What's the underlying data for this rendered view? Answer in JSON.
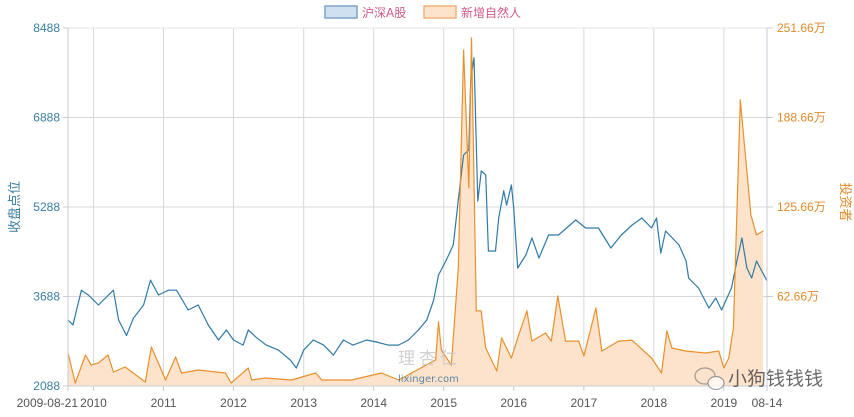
{
  "chart_data": {
    "type": "line",
    "title": "",
    "x_type": "date",
    "x_tick_labels": [
      "2009-08-21",
      "2010",
      "2011",
      "2012",
      "2013",
      "2014",
      "2015",
      "2016",
      "2017",
      "2018",
      "2019",
      "08-14"
    ],
    "xlim": [
      "2009-08-21",
      "2019-08-14"
    ],
    "y_left": {
      "label": "收盘点位",
      "ticks": [
        "2088",
        "3688",
        "5288",
        "6888",
        "8488"
      ],
      "range": [
        2088,
        8488
      ]
    },
    "y_right": {
      "label": "投资者",
      "ticks": [
        "62.66万",
        "125.66万",
        "188.66万",
        "251.66万"
      ],
      "range": [
        -0.34,
        251.66
      ],
      "unit": "万"
    },
    "grid": true,
    "legend_position": "top-center",
    "series": [
      {
        "name": "沪深A股",
        "axis": "left",
        "style": "line",
        "color": "#2f7aa6",
        "legend_fill": "#cfe0f1",
        "legend_border": "#7fa3c7",
        "points": [
          [
            "2009-08-21",
            3268
          ],
          [
            "2009-09-16",
            3180
          ],
          [
            "2009-10-30",
            3800
          ],
          [
            "2009-12-05",
            3715
          ],
          [
            "2010-01-01",
            3625
          ],
          [
            "2010-01-27",
            3536
          ],
          [
            "2010-03-20",
            3715
          ],
          [
            "2010-04-15",
            3800
          ],
          [
            "2010-05-12",
            3268
          ],
          [
            "2010-06-22",
            2990
          ],
          [
            "2010-07-28",
            3300
          ],
          [
            "2010-09-19",
            3536
          ],
          [
            "2010-10-25",
            3980
          ],
          [
            "2010-12-06",
            3715
          ],
          [
            "2011-01-27",
            3800
          ],
          [
            "2011-03-10",
            3800
          ],
          [
            "2011-05-10",
            3447
          ],
          [
            "2011-07-01",
            3536
          ],
          [
            "2011-08-22",
            3180
          ],
          [
            "2011-10-15",
            2910
          ],
          [
            "2011-11-25",
            3090
          ],
          [
            "2012-01-01",
            2910
          ],
          [
            "2012-02-20",
            2820
          ],
          [
            "2012-03-18",
            3090
          ],
          [
            "2012-05-01",
            2950
          ],
          [
            "2012-06-20",
            2820
          ],
          [
            "2012-08-22",
            2730
          ],
          [
            "2012-10-23",
            2553
          ],
          [
            "2012-11-24",
            2410
          ],
          [
            "2013-01-01",
            2730
          ],
          [
            "2013-02-20",
            2910
          ],
          [
            "2013-04-15",
            2820
          ],
          [
            "2013-06-05",
            2640
          ],
          [
            "2013-07-27",
            2910
          ],
          [
            "2013-09-15",
            2820
          ],
          [
            "2013-11-25",
            2910
          ],
          [
            "2014-01-15",
            2875
          ],
          [
            "2014-03-18",
            2820
          ],
          [
            "2014-05-10",
            2820
          ],
          [
            "2014-07-01",
            2910
          ],
          [
            "2014-08-22",
            3090
          ],
          [
            "2014-10-05",
            3268
          ],
          [
            "2014-11-10",
            3625
          ],
          [
            "2014-12-05",
            4073
          ],
          [
            "2015-01-01",
            4250
          ],
          [
            "2015-01-27",
            4430
          ],
          [
            "2015-02-20",
            4610
          ],
          [
            "2015-03-18",
            5415
          ],
          [
            "2015-04-15",
            6218
          ],
          [
            "2015-05-12",
            6308
          ],
          [
            "2015-05-22",
            7560
          ],
          [
            "2015-06-08",
            7953
          ],
          [
            "2015-06-28",
            5396
          ],
          [
            "2015-07-16",
            5932
          ],
          [
            "2015-08-08",
            5861
          ],
          [
            "2015-08-22",
            4502
          ],
          [
            "2015-09-28",
            4502
          ],
          [
            "2015-10-15",
            5092
          ],
          [
            "2015-11-10",
            5575
          ],
          [
            "2015-11-25",
            5324
          ],
          [
            "2015-12-20",
            5682
          ],
          [
            "2016-01-01",
            5271
          ],
          [
            "2016-01-22",
            4198
          ],
          [
            "2016-03-05",
            4430
          ],
          [
            "2016-04-05",
            4734
          ],
          [
            "2016-05-12",
            4377
          ],
          [
            "2016-07-01",
            4788
          ],
          [
            "2016-08-22",
            4788
          ],
          [
            "2016-11-20",
            5056
          ],
          [
            "2017-01-10",
            4913
          ],
          [
            "2017-03-18",
            4913
          ],
          [
            "2017-05-22",
            4555
          ],
          [
            "2017-07-15",
            4788
          ],
          [
            "2017-09-10",
            4967
          ],
          [
            "2017-10-30",
            5092
          ],
          [
            "2017-12-20",
            4913
          ],
          [
            "2018-01-15",
            5092
          ],
          [
            "2018-02-06",
            4466
          ],
          [
            "2018-03-03",
            4859
          ],
          [
            "2018-05-12",
            4609
          ],
          [
            "2018-06-18",
            4323
          ],
          [
            "2018-07-01",
            4019
          ],
          [
            "2018-08-22",
            3840
          ],
          [
            "2018-10-15",
            3483
          ],
          [
            "2018-11-20",
            3661
          ],
          [
            "2018-12-20",
            3447
          ],
          [
            "2019-02-10",
            3840
          ],
          [
            "2019-03-10",
            4323
          ],
          [
            "2019-04-05",
            4734
          ],
          [
            "2019-05-01",
            4198
          ],
          [
            "2019-05-26",
            4019
          ],
          [
            "2019-06-20",
            4323
          ],
          [
            "2019-08-14",
            3965
          ]
        ]
      },
      {
        "name": "新增自然人",
        "axis": "right",
        "style": "area",
        "unit": "万",
        "color": "#e8902a",
        "area_fill": "#fde3cc",
        "legend_fill": "#fde3cc",
        "legend_border": "#f0b27a",
        "points": [
          [
            "2009-08-21",
            22.9
          ],
          [
            "2009-09-28",
            1.8
          ],
          [
            "2009-11-20",
            21.5
          ],
          [
            "2009-12-20",
            14.4
          ],
          [
            "2010-01-27",
            15.9
          ],
          [
            "2010-03-18",
            21.5
          ],
          [
            "2010-04-15",
            9.5
          ],
          [
            "2010-06-15",
            13.0
          ],
          [
            "2010-09-28",
            2.5
          ],
          [
            "2010-10-30",
            27.1
          ],
          [
            "2010-12-05",
            15.9
          ],
          [
            "2011-01-12",
            3.9
          ],
          [
            "2011-03-05",
            20.1
          ],
          [
            "2011-04-05",
            8.8
          ],
          [
            "2011-07-01",
            10.9
          ],
          [
            "2011-11-20",
            8.8
          ],
          [
            "2011-12-20",
            1.8
          ],
          [
            "2012-03-18",
            12.3
          ],
          [
            "2012-04-05",
            3.9
          ],
          [
            "2012-06-15",
            5.3
          ],
          [
            "2012-10-30",
            3.9
          ],
          [
            "2013-03-05",
            8.8
          ],
          [
            "2013-04-05",
            3.9
          ],
          [
            "2013-09-08",
            3.9
          ],
          [
            "2014-02-10",
            8.8
          ],
          [
            "2014-05-12",
            3.9
          ],
          [
            "2014-11-20",
            18.0
          ],
          [
            "2014-12-05",
            44.7
          ],
          [
            "2014-12-20",
            25.0
          ],
          [
            "2015-02-10",
            14.4
          ],
          [
            "2015-03-18",
            82.7
          ],
          [
            "2015-04-15",
            236.2
          ],
          [
            "2015-05-12",
            139.1
          ],
          [
            "2015-05-26",
            244.6
          ],
          [
            "2015-06-20",
            52.5
          ],
          [
            "2015-07-15",
            52.5
          ],
          [
            "2015-08-08",
            26.4
          ],
          [
            "2015-10-05",
            10.2
          ],
          [
            "2015-10-30",
            33.5
          ],
          [
            "2015-12-20",
            19.4
          ],
          [
            "2016-01-27",
            35.6
          ],
          [
            "2016-03-10",
            52.5
          ],
          [
            "2016-04-05",
            31.3
          ],
          [
            "2016-06-15",
            37.0
          ],
          [
            "2016-07-15",
            31.3
          ],
          [
            "2016-08-18",
            63.0
          ],
          [
            "2016-09-28",
            31.3
          ],
          [
            "2016-12-05",
            31.3
          ],
          [
            "2017-01-01",
            20.8
          ],
          [
            "2017-03-05",
            54.6
          ],
          [
            "2017-04-05",
            24.3
          ],
          [
            "2017-07-01",
            31.3
          ],
          [
            "2017-09-08",
            32.0
          ],
          [
            "2017-12-20",
            19.4
          ],
          [
            "2018-02-10",
            8.8
          ],
          [
            "2018-03-10",
            38.4
          ],
          [
            "2018-04-05",
            26.4
          ],
          [
            "2018-06-15",
            24.3
          ],
          [
            "2018-09-28",
            22.9
          ],
          [
            "2018-12-05",
            24.3
          ],
          [
            "2019-01-01",
            12.3
          ],
          [
            "2019-01-27",
            19.4
          ],
          [
            "2019-02-20",
            40.5
          ],
          [
            "2019-03-28",
            201.0
          ],
          [
            "2019-05-22",
            120.0
          ],
          [
            "2019-06-20",
            106.0
          ],
          [
            "2019-07-25",
            108.8
          ]
        ]
      }
    ]
  },
  "colors": {
    "left_axis": "#3b7ea1",
    "right_axis": "#e08a2a",
    "legend_text": "#d05a8a",
    "grid": "#d8d8dc",
    "axis": "#c8ccd8"
  },
  "watermarks": {
    "site_logo": "理杏仁",
    "site_url": "lixinger.com",
    "account": "小狗钱钱钱",
    "account_icon": "wechat-icon"
  }
}
